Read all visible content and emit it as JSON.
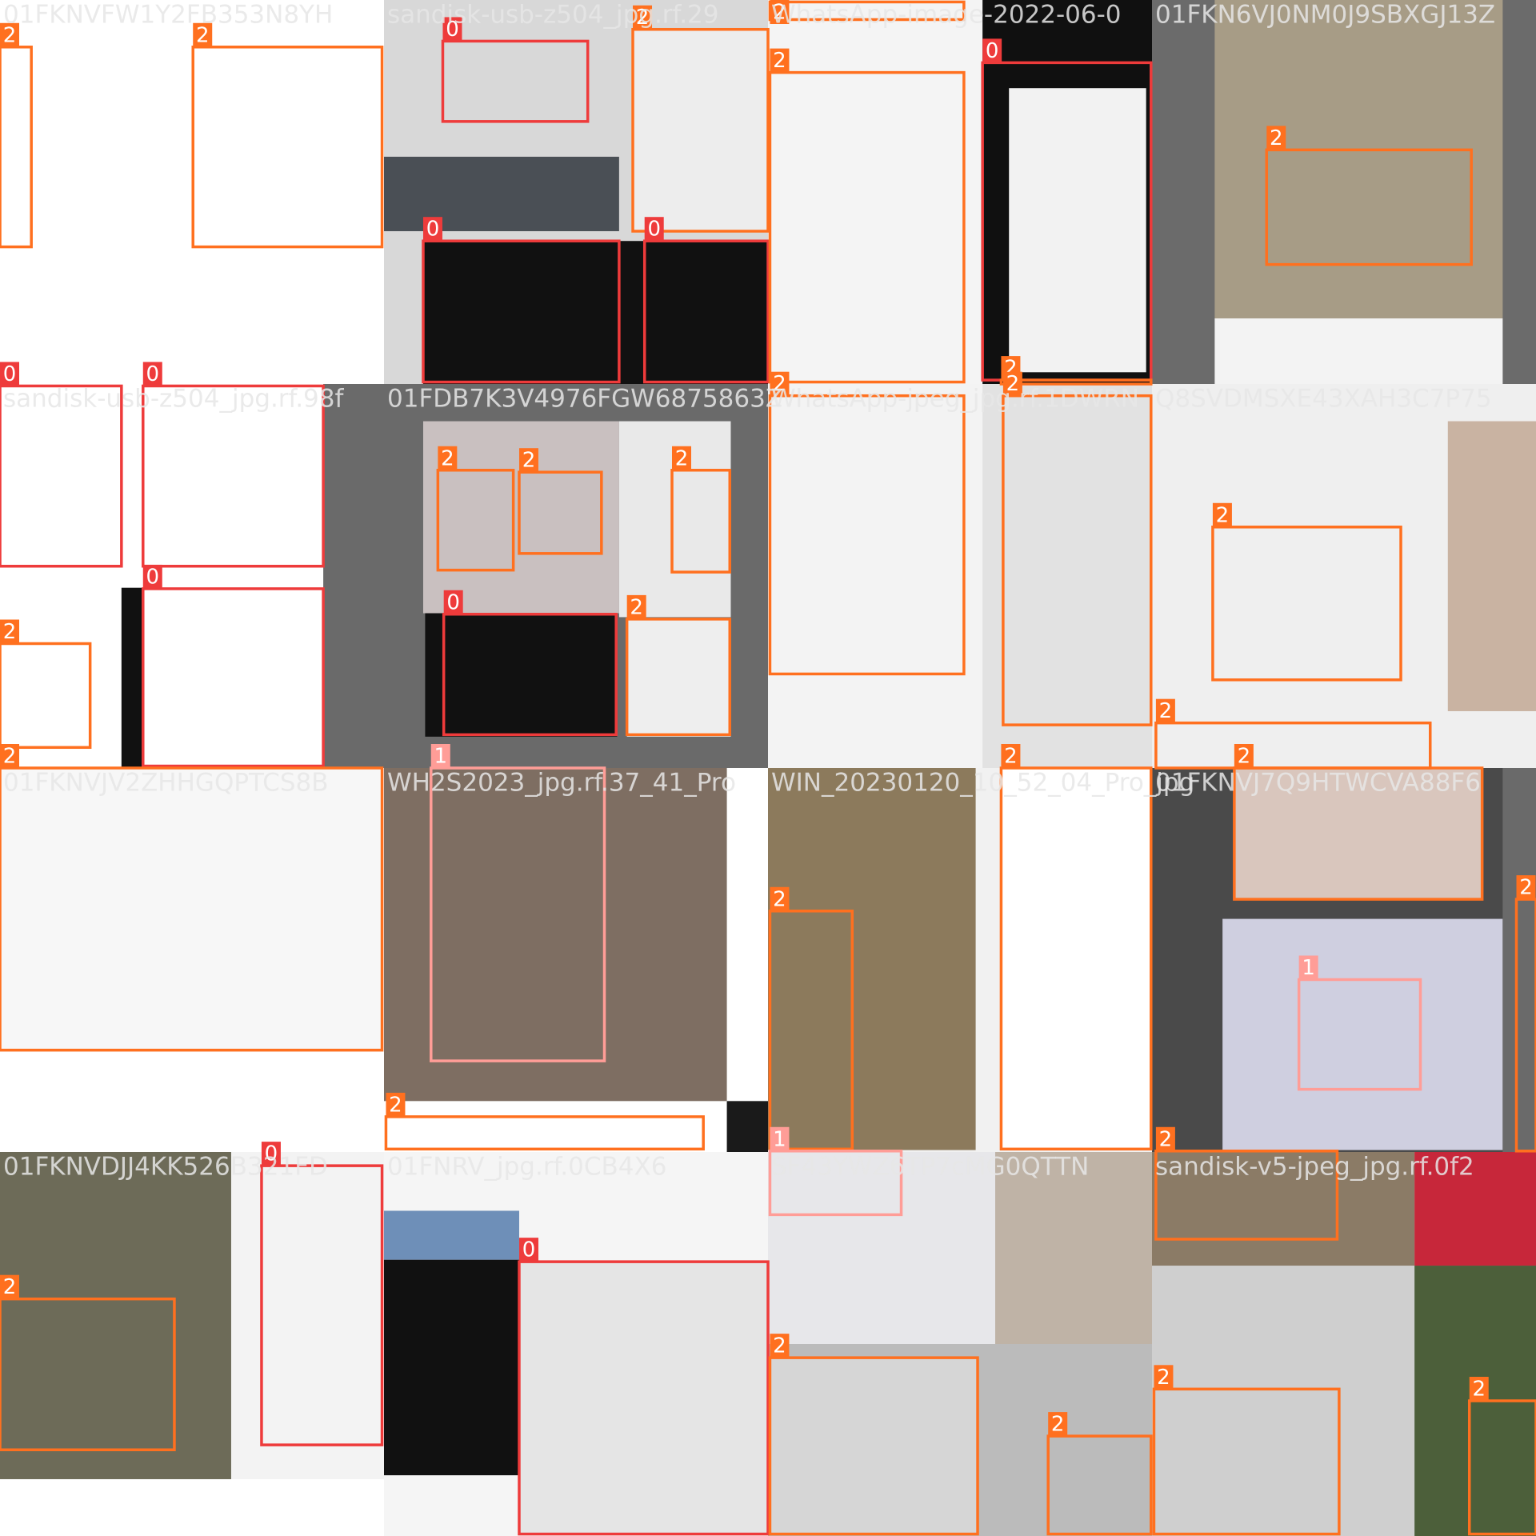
{
  "class_colors": {
    "0": "#ee3b3b",
    "1": "#ff9d97",
    "2": "#ff701f"
  },
  "tiles": [
    {
      "filename": "01FKNVFW1Y2FB353N8YH",
      "boxes": [
        {
          "label": "2"
        },
        {
          "label": "2"
        }
      ]
    },
    {
      "filename": "sandisk-usb-z504_jpg.rf.29",
      "boxes": [
        {
          "label": "0"
        },
        {
          "label": "2"
        },
        {
          "label": "0"
        },
        {
          "label": "0"
        }
      ]
    },
    {
      "filename": "WhatsApp-image-2022-06-0",
      "boxes": [
        {
          "label": "2"
        },
        {
          "label": "2"
        },
        {
          "label": "0"
        },
        {
          "label": "2"
        }
      ]
    },
    {
      "filename": "01FKN6VJ0NM0J9SBXGJ13Z",
      "boxes": [
        {
          "label": "2"
        }
      ]
    },
    {
      "filename": "sandisk-usb-z504_jpg.rf.98f",
      "boxes": [
        {
          "label": "0"
        },
        {
          "label": "0"
        },
        {
          "label": "0"
        },
        {
          "label": "2"
        }
      ]
    },
    {
      "filename": "01FDB7K3V4976FGW6875863Z",
      "boxes": [
        {
          "label": "2"
        },
        {
          "label": "2"
        },
        {
          "label": "2"
        },
        {
          "label": "0"
        },
        {
          "label": "2"
        }
      ]
    },
    {
      "filename": "WhatsApp-jpeg_jpg.rf.1DWRN",
      "boxes": [
        {
          "label": "2"
        },
        {
          "label": "2"
        }
      ]
    },
    {
      "filename": "Q8SVDMSXE43XAH3C7P75",
      "boxes": [
        {
          "label": "2"
        },
        {
          "label": "2"
        }
      ]
    },
    {
      "filename": "01FKNVJV2ZHHGQPTCS8B",
      "boxes": [
        {
          "label": "2"
        }
      ]
    },
    {
      "filename": "WH2S2023_jpg.rf.37_41_Pro",
      "boxes": [
        {
          "label": "1"
        },
        {
          "label": "2"
        }
      ]
    },
    {
      "filename": "WIN_20230120_10_52_04_Pro_jpg",
      "boxes": [
        {
          "label": "2"
        },
        {
          "label": "2"
        },
        {
          "label": "1"
        }
      ]
    },
    {
      "filename": "01FKNVJ7Q9HTWCVA88F6",
      "boxes": [
        {
          "label": "2"
        },
        {
          "label": "1"
        },
        {
          "label": "2"
        },
        {
          "label": "2"
        }
      ]
    },
    {
      "filename": "01FKNVDJJ4KK526B321FD",
      "boxes": [
        {
          "label": "2"
        },
        {
          "label": "0"
        }
      ]
    },
    {
      "filename": "01FNRV_jpg.rf.0CB4X6",
      "boxes": [
        {
          "label": "0"
        }
      ]
    },
    {
      "filename": "SF43YWZ6TP7cMG0QTTN",
      "boxes": [
        {
          "label": "2"
        },
        {
          "label": "2"
        }
      ]
    },
    {
      "filename": "sandisk-v5-jpeg_jpg.rf.0f2",
      "boxes": [
        {
          "label": "2"
        },
        {
          "label": "2"
        }
      ]
    }
  ]
}
